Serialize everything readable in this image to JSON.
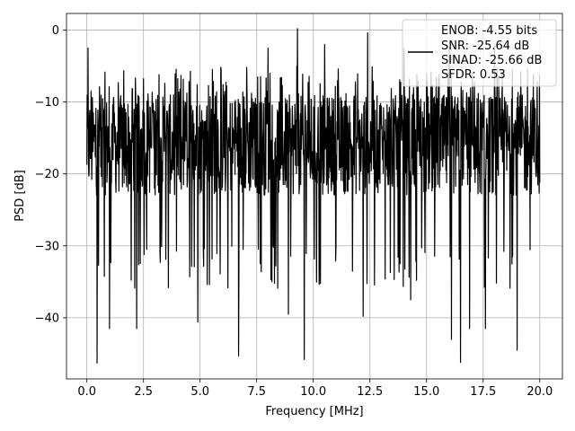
{
  "chart_data": {
    "type": "line",
    "title": "",
    "xlabel": "Frequency [MHz]",
    "ylabel": "PSD [dB]",
    "xlim": [
      -0.9,
      21.0
    ],
    "ylim": [
      -48.5,
      2.3
    ],
    "xticks": [
      0.0,
      2.5,
      5.0,
      7.5,
      10.0,
      12.5,
      15.0,
      17.5,
      20.0
    ],
    "xtick_labels": [
      "0.0",
      "2.5",
      "5.0",
      "7.5",
      "10.0",
      "12.5",
      "15.0",
      "17.5",
      "20.0"
    ],
    "yticks": [
      0,
      -10,
      -20,
      -30,
      -40
    ],
    "ytick_labels": [
      "0",
      "−10",
      "−20",
      "−30",
      "−40"
    ],
    "grid": true,
    "legend_position": "top-right",
    "legend": [
      "ENOB: -4.55 bits",
      "SNR: -25.64 dB",
      "SINAD: -25.66 dB",
      "SFDR: 0.53"
    ],
    "series_color": "#000000",
    "series": [
      {
        "name": "ENOB: -4.55 bits\nSNR: -25.64 dB\nSINAD: -25.66 dB\nSFDR: 0.53",
        "x_start": 0.0,
        "x_end": 20.0,
        "description_values": {
          "mean_level_db": -16,
          "upper_envelope_db": -8,
          "lower_envelope_db": -30
        },
        "peaks": [
          {
            "x": 0.05,
            "y": -2.5
          },
          {
            "x": 9.3,
            "y": 0.2
          },
          {
            "x": 12.4,
            "y": -0.4
          },
          {
            "x": 10.5,
            "y": -2.0
          },
          {
            "x": 8.0,
            "y": -2.5
          },
          {
            "x": 14.0,
            "y": -2.5
          },
          {
            "x": 16.0,
            "y": -2.5
          },
          {
            "x": 18.0,
            "y": -2.2
          },
          {
            "x": 6.7,
            "y": -2.8
          }
        ],
        "troughs": [
          {
            "x": 0.45,
            "y": -46.3
          },
          {
            "x": 1.0,
            "y": -41.5
          },
          {
            "x": 2.2,
            "y": -41.5
          },
          {
            "x": 3.6,
            "y": -35.8
          },
          {
            "x": 4.9,
            "y": -40.6
          },
          {
            "x": 6.7,
            "y": -45.3
          },
          {
            "x": 8.9,
            "y": -39.5
          },
          {
            "x": 9.6,
            "y": -45.8
          },
          {
            "x": 12.2,
            "y": -39.8
          },
          {
            "x": 14.3,
            "y": -37.5
          },
          {
            "x": 16.1,
            "y": -43.0
          },
          {
            "x": 16.5,
            "y": -46.2
          },
          {
            "x": 16.9,
            "y": -41.5
          },
          {
            "x": 17.6,
            "y": -41.5
          },
          {
            "x": 19.0,
            "y": -44.5
          }
        ]
      }
    ]
  }
}
